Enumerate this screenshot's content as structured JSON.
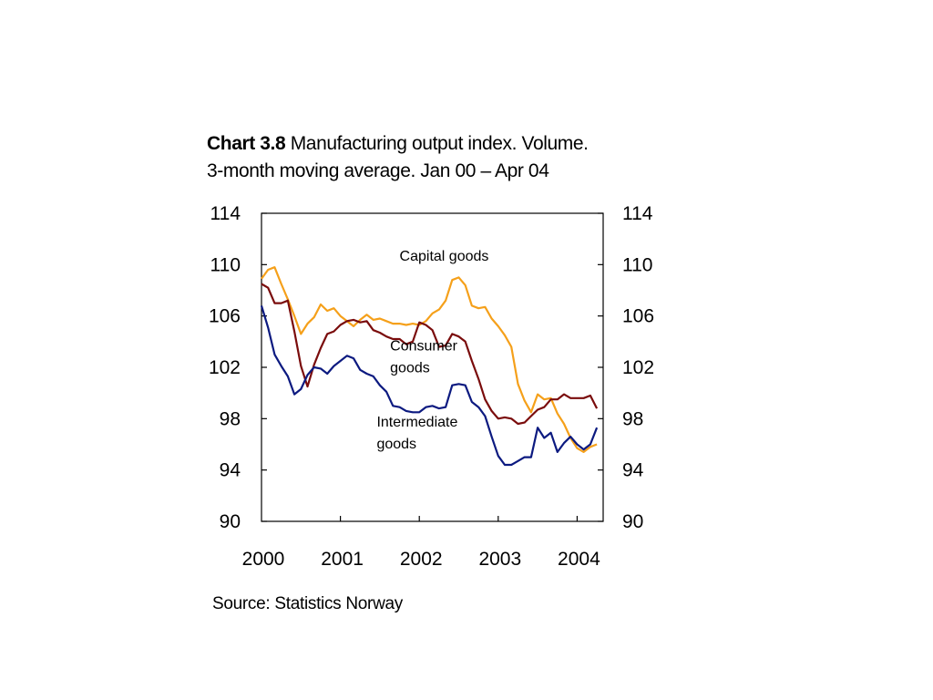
{
  "chart_data": {
    "type": "line",
    "title_bold": "Chart 3.8",
    "title_rest": "Manufacturing output index. Volume.",
    "subtitle": "3-month moving average. Jan 00 – Apr 04",
    "source": "Source: Statistics Norway",
    "ylim": [
      90,
      114
    ],
    "yticks": [
      "90",
      "94",
      "98",
      "102",
      "106",
      "110",
      "114"
    ],
    "xlim": [
      2000,
      2004.33
    ],
    "xticks": [
      "2000",
      "2001",
      "2002",
      "2003",
      "2004"
    ],
    "x_start": "Jan 2000",
    "x_step": "1 month",
    "series": [
      {
        "name": "Capital goods",
        "label_lines": [
          "Capital goods"
        ],
        "color": "#f5a01a",
        "values": [
          108.9,
          109.6,
          109.8,
          108.5,
          107.3,
          106.0,
          104.6,
          105.4,
          105.9,
          106.9,
          106.4,
          106.6,
          106.0,
          105.6,
          105.2,
          105.7,
          106.1,
          105.7,
          105.8,
          105.6,
          105.4,
          105.4,
          105.3,
          105.4,
          105.3,
          105.6,
          106.2,
          106.5,
          107.2,
          108.8,
          109.0,
          108.4,
          106.8,
          106.6,
          106.7,
          105.8,
          105.2,
          104.5,
          103.6,
          100.7,
          99.4,
          98.5,
          99.9,
          99.5,
          99.6,
          98.4,
          97.6,
          96.5,
          95.7,
          95.4,
          95.8,
          96.0
        ]
      },
      {
        "name": "Consumer goods",
        "label_lines": [
          "Consumer",
          "goods"
        ],
        "color": "#7a0c0c",
        "values": [
          108.5,
          108.2,
          107.0,
          107.0,
          107.2,
          104.8,
          102.1,
          100.5,
          102.2,
          103.5,
          104.6,
          104.8,
          105.3,
          105.6,
          105.7,
          105.5,
          105.6,
          104.9,
          104.7,
          104.4,
          104.2,
          104.2,
          103.8,
          104.0,
          105.5,
          105.3,
          104.9,
          103.6,
          103.7,
          104.6,
          104.4,
          104.0,
          102.5,
          101.1,
          99.5,
          98.6,
          98.0,
          98.1,
          98.0,
          97.6,
          97.7,
          98.2,
          98.7,
          98.9,
          99.5,
          99.5,
          99.9,
          99.6,
          99.6,
          99.6,
          99.8,
          98.8
        ]
      },
      {
        "name": "Intermediate goods",
        "label_lines": [
          "Intermediate",
          "goods"
        ],
        "color": "#0c1a80",
        "values": [
          106.8,
          105.1,
          103.0,
          102.1,
          101.3,
          99.9,
          100.3,
          101.4,
          102.0,
          101.9,
          101.5,
          102.1,
          102.5,
          102.9,
          102.7,
          101.8,
          101.5,
          101.3,
          100.6,
          100.1,
          99.0,
          98.9,
          98.6,
          98.5,
          98.5,
          98.9,
          99.0,
          98.8,
          98.9,
          100.6,
          100.7,
          100.6,
          99.3,
          98.9,
          98.2,
          96.6,
          95.1,
          94.4,
          94.4,
          94.7,
          95.0,
          95.0,
          97.3,
          96.5,
          96.9,
          95.4,
          96.1,
          96.6,
          96.0,
          95.6,
          96.0,
          97.3
        ]
      }
    ]
  }
}
